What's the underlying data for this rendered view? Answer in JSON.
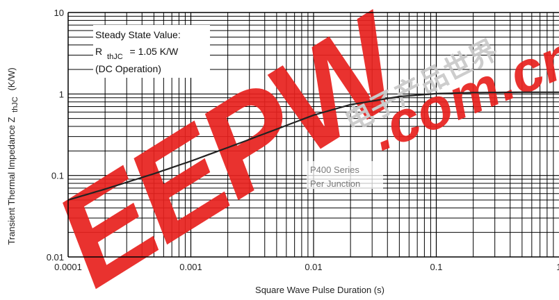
{
  "chart_data": {
    "type": "line",
    "xscale": "log",
    "yscale": "log",
    "xlim": [
      0.0001,
      1
    ],
    "ylim": [
      0.01,
      10
    ],
    "grid": true,
    "xlabel": "Square Wave Pulse Duration (s)",
    "ylabel_main": "Transient Thermal Impedance Z",
    "ylabel_sub": "thJC",
    "ylabel_unit": "(K/W)",
    "x_ticks": [
      {
        "value": 0.0001,
        "label": "0.0001"
      },
      {
        "value": 0.001,
        "label": "0.001"
      },
      {
        "value": 0.01,
        "label": "0.01"
      },
      {
        "value": 0.1,
        "label": "0.1"
      },
      {
        "value": 1,
        "label": "1"
      }
    ],
    "y_ticks": [
      {
        "value": 0.01,
        "label": "0.01"
      },
      {
        "value": 0.1,
        "label": "0.1"
      },
      {
        "value": 1,
        "label": "1"
      },
      {
        "value": 10,
        "label": "10"
      }
    ],
    "series": [
      {
        "x": [
          0.0001,
          0.0002,
          0.0005,
          0.001,
          0.002,
          0.005,
          0.01,
          0.02,
          0.05,
          0.1,
          0.2,
          0.5,
          1
        ],
        "y": [
          0.05,
          0.068,
          0.105,
          0.15,
          0.22,
          0.37,
          0.55,
          0.74,
          0.93,
          1.01,
          1.04,
          1.05,
          1.05
        ]
      }
    ],
    "annotations": {
      "steady_state_line1": "Steady State Value:",
      "steady_state_r": "R",
      "steady_state_sub": "thJC",
      "steady_state_value": "= 1.05 K/W",
      "steady_state_line3": "(DC Operation)",
      "series_line1": "P400 Series",
      "series_line2": "Per Junction"
    }
  },
  "watermark": {
    "logo": "EEPW",
    "domain": ".com.cn",
    "chinese": "电子产品世界",
    "logo_color": "#e8211e"
  }
}
